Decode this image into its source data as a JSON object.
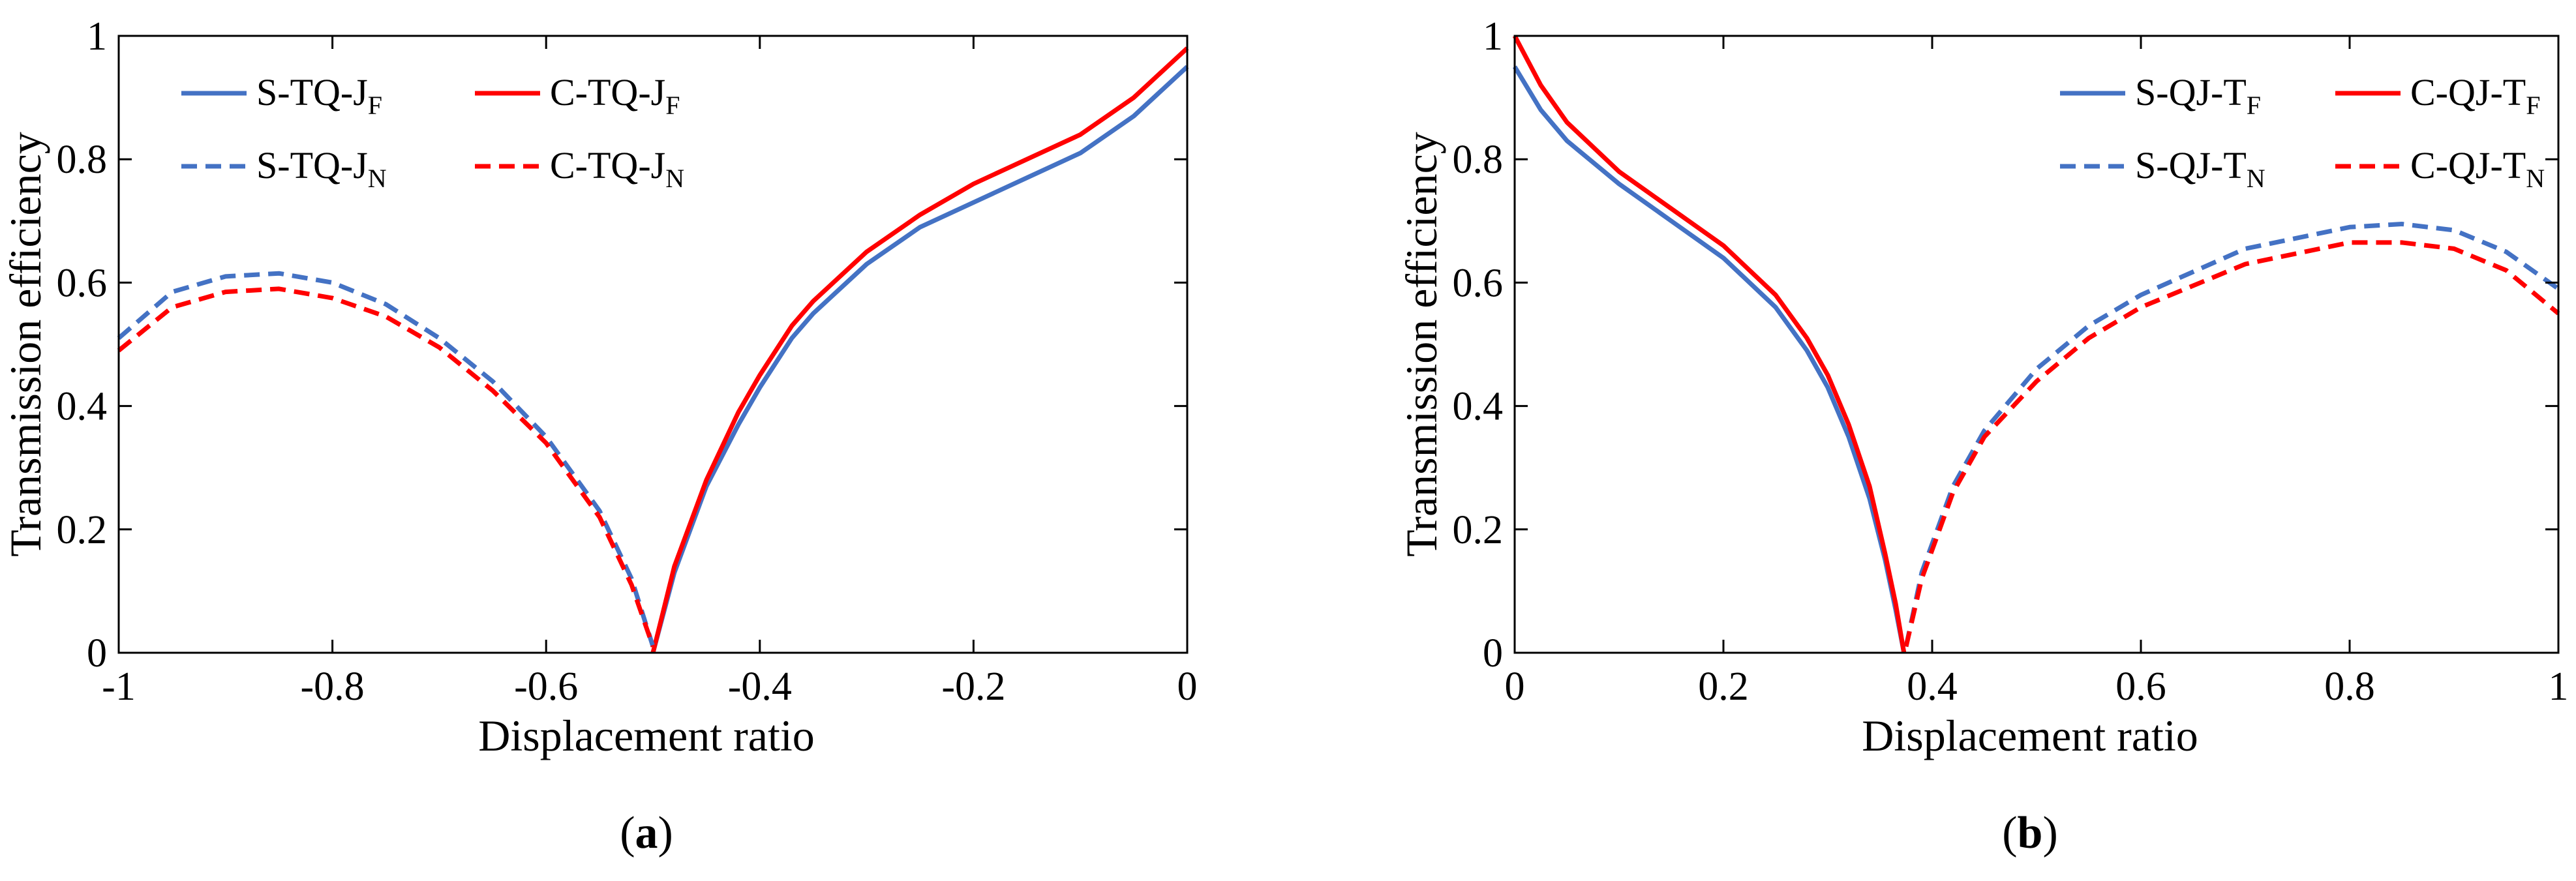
{
  "chart_data": [
    {
      "type": "line",
      "panel_label": "(a)",
      "panel_letter": "a",
      "xlabel": "Displacement ratio",
      "ylabel": "Transmission efficiency",
      "xlim": [
        -1,
        0
      ],
      "ylim": [
        0,
        1
      ],
      "xticks": [
        -1,
        -0.8,
        -0.6,
        -0.4,
        -0.2,
        0
      ],
      "xtick_labels": [
        "-1",
        "-0.8",
        "-0.6",
        "-0.4",
        "-0.2",
        "0"
      ],
      "yticks": [
        0,
        0.2,
        0.4,
        0.6,
        0.8,
        1
      ],
      "ytick_labels": [
        "0",
        "0.2",
        "0.4",
        "0.6",
        "0.8",
        "1"
      ],
      "grid": false,
      "legend_position": "top-left",
      "series": [
        {
          "name": "S-TQ-J",
          "name_sub": "F",
          "color": "#4472c4",
          "dash": "solid",
          "x": [
            -0.5,
            -0.48,
            -0.45,
            -0.42,
            -0.4,
            -0.37,
            -0.35,
            -0.3,
            -0.25,
            -0.2,
            -0.15,
            -0.1,
            -0.05,
            0
          ],
          "y": [
            0,
            0.13,
            0.27,
            0.37,
            0.43,
            0.51,
            0.55,
            0.63,
            0.69,
            0.73,
            0.77,
            0.81,
            0.87,
            0.95
          ]
        },
        {
          "name": "C-TQ-J",
          "name_sub": "F",
          "color": "#ff0000",
          "dash": "solid",
          "x": [
            -0.5,
            -0.48,
            -0.45,
            -0.42,
            -0.4,
            -0.37,
            -0.35,
            -0.3,
            -0.25,
            -0.2,
            -0.15,
            -0.1,
            -0.05,
            0
          ],
          "y": [
            0,
            0.14,
            0.28,
            0.39,
            0.45,
            0.53,
            0.57,
            0.65,
            0.71,
            0.76,
            0.8,
            0.84,
            0.9,
            0.98
          ]
        },
        {
          "name": "S-TQ-J",
          "name_sub": "N",
          "color": "#4472c4",
          "dash": "dashed",
          "x": [
            -1,
            -0.95,
            -0.9,
            -0.85,
            -0.8,
            -0.75,
            -0.7,
            -0.65,
            -0.6,
            -0.55,
            -0.52,
            -0.5
          ],
          "y": [
            0.51,
            0.585,
            0.61,
            0.615,
            0.6,
            0.565,
            0.51,
            0.44,
            0.35,
            0.23,
            0.12,
            0.01
          ]
        },
        {
          "name": "C-TQ-J",
          "name_sub": "N",
          "color": "#ff0000",
          "dash": "dashed",
          "x": [
            -1,
            -0.95,
            -0.9,
            -0.85,
            -0.8,
            -0.75,
            -0.7,
            -0.65,
            -0.6,
            -0.55,
            -0.52,
            -0.5
          ],
          "y": [
            0.49,
            0.56,
            0.585,
            0.59,
            0.575,
            0.545,
            0.495,
            0.425,
            0.34,
            0.22,
            0.11,
            0.01
          ]
        }
      ]
    },
    {
      "type": "line",
      "panel_label": "(b)",
      "panel_letter": "b",
      "xlabel": "Displacement ratio",
      "ylabel": "Transmission efficiency",
      "xlim": [
        0,
        1
      ],
      "ylim": [
        0,
        1
      ],
      "xticks": [
        0,
        0.2,
        0.4,
        0.6,
        0.8,
        1
      ],
      "xtick_labels": [
        "0",
        "0.2",
        "0.4",
        "0.6",
        "0.8",
        "1"
      ],
      "yticks": [
        0,
        0.2,
        0.4,
        0.6,
        0.8,
        1
      ],
      "ytick_labels": [
        "0",
        "0.2",
        "0.4",
        "0.6",
        "0.8",
        "1"
      ],
      "grid": false,
      "legend_position": "top-right",
      "series": [
        {
          "name": "S-QJ-T",
          "name_sub": "F",
          "color": "#4472c4",
          "dash": "solid",
          "x": [
            0,
            0.025,
            0.05,
            0.1,
            0.15,
            0.2,
            0.25,
            0.28,
            0.3,
            0.32,
            0.34,
            0.355,
            0.365,
            0.373
          ],
          "y": [
            0.95,
            0.88,
            0.83,
            0.76,
            0.7,
            0.64,
            0.56,
            0.49,
            0.43,
            0.35,
            0.25,
            0.15,
            0.07,
            0
          ]
        },
        {
          "name": "C-QJ-T",
          "name_sub": "F",
          "color": "#ff0000",
          "dash": "solid",
          "x": [
            0,
            0.025,
            0.05,
            0.1,
            0.15,
            0.2,
            0.25,
            0.28,
            0.3,
            0.32,
            0.34,
            0.355,
            0.365,
            0.373
          ],
          "y": [
            1.0,
            0.92,
            0.86,
            0.78,
            0.72,
            0.66,
            0.58,
            0.51,
            0.45,
            0.37,
            0.27,
            0.16,
            0.08,
            0
          ]
        },
        {
          "name": "S-QJ-T",
          "name_sub": "N",
          "color": "#4472c4",
          "dash": "dashed",
          "x": [
            0.375,
            0.39,
            0.42,
            0.45,
            0.5,
            0.55,
            0.6,
            0.7,
            0.8,
            0.85,
            0.9,
            0.95,
            1.0
          ],
          "y": [
            0.01,
            0.13,
            0.27,
            0.36,
            0.46,
            0.53,
            0.58,
            0.655,
            0.69,
            0.695,
            0.685,
            0.65,
            0.59
          ]
        },
        {
          "name": "C-QJ-T",
          "name_sub": "N",
          "color": "#ff0000",
          "dash": "dashed",
          "x": [
            0.375,
            0.39,
            0.42,
            0.45,
            0.5,
            0.55,
            0.6,
            0.7,
            0.8,
            0.85,
            0.9,
            0.95,
            1.0
          ],
          "y": [
            0.01,
            0.12,
            0.26,
            0.35,
            0.44,
            0.51,
            0.56,
            0.63,
            0.665,
            0.665,
            0.655,
            0.62,
            0.55
          ]
        }
      ]
    }
  ]
}
